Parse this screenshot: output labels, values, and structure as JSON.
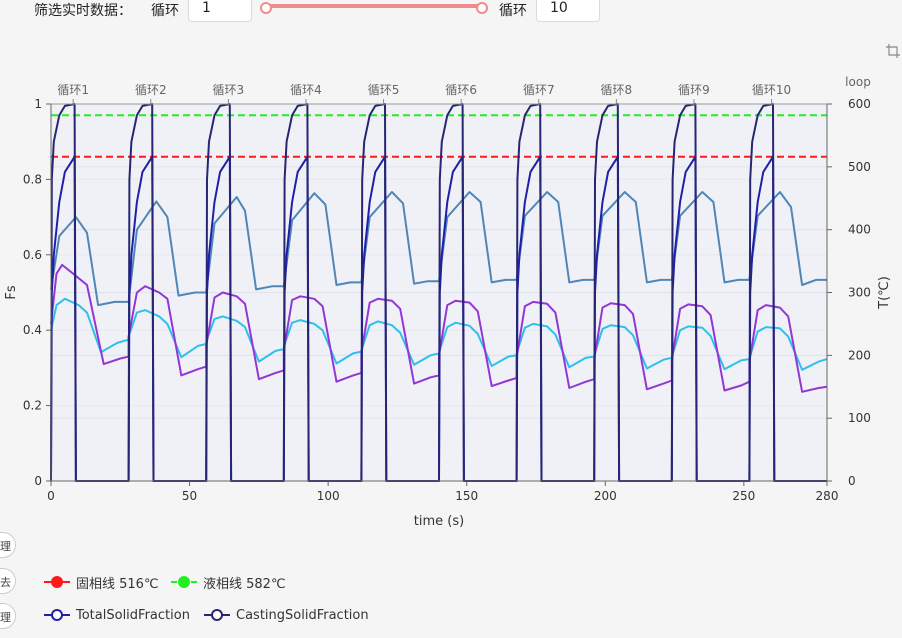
{
  "filter": {
    "label": "筛选实时数据：",
    "cycle_label_from": "循环",
    "from_value": "1",
    "cycle_label_to": "循环",
    "to_value": "10"
  },
  "side_tabs": [
    "理",
    "去",
    "理"
  ],
  "legend": {
    "solidus": {
      "label": "固相线 516℃",
      "color": "#ff1a1a"
    },
    "liquidus": {
      "label": "液相线 582℃",
      "color": "#22ee22"
    },
    "total": {
      "label": "TotalSolidFraction",
      "color": "#1f1fa8"
    },
    "casting": {
      "label": "CastingSolidFraction",
      "color": "#262673"
    }
  },
  "chart_data": {
    "type": "line",
    "xlabel": "time (s)",
    "ylabel_left": "Fs",
    "ylabel_right": "T(℃)",
    "top_axis_label": "loop",
    "xlim": [
      0,
      280
    ],
    "ylim_left": [
      0,
      1
    ],
    "ylim_right": [
      0,
      600
    ],
    "x_ticks": [
      0,
      50,
      100,
      150,
      200,
      250,
      280
    ],
    "y_left_ticks": [
      0,
      0.2,
      0.4,
      0.6,
      0.8,
      1
    ],
    "y_right_ticks": [
      0,
      100,
      200,
      300,
      400,
      500,
      600
    ],
    "top_ticks": [
      {
        "label": "循环1",
        "x": 8
      },
      {
        "label": "循环2",
        "x": 36
      },
      {
        "label": "循环3",
        "x": 64
      },
      {
        "label": "循环4",
        "x": 92
      },
      {
        "label": "循环5",
        "x": 120
      },
      {
        "label": "循环6",
        "x": 148
      },
      {
        "label": "循环7",
        "x": 176
      },
      {
        "label": "循环8",
        "x": 204
      },
      {
        "label": "循环9",
        "x": 232
      },
      {
        "label": "循环10",
        "x": 260
      }
    ],
    "cycle_starts": [
      0,
      28,
      56,
      84,
      112,
      140,
      168,
      196,
      224,
      252
    ],
    "cycle_period": 28,
    "reference_lines": [
      {
        "name": "固相线 516℃",
        "axis": "right",
        "value": 516,
        "color": "#ff1a1a"
      },
      {
        "name": "液相线 582℃",
        "axis": "right",
        "value": 582,
        "color": "#22ee22"
      }
    ],
    "series": [
      {
        "name": "CastingSolidFraction",
        "axis": "left",
        "color": "#262673",
        "cycle_points": [
          [
            0,
            0
          ],
          [
            0.3,
            0.8
          ],
          [
            1,
            0.9
          ],
          [
            3,
            0.97
          ],
          [
            5,
            0.995
          ],
          [
            8.5,
            1
          ],
          [
            9,
            0
          ],
          [
            28,
            0
          ]
        ]
      },
      {
        "name": "TotalSolidFraction",
        "axis": "left",
        "color": "#1f1fa8",
        "cycle_points": [
          [
            0,
            0
          ],
          [
            0.3,
            0.5
          ],
          [
            1,
            0.6
          ],
          [
            3,
            0.74
          ],
          [
            5,
            0.82
          ],
          [
            8.5,
            0.86
          ],
          [
            9,
            0
          ],
          [
            28,
            0
          ]
        ]
      },
      {
        "name": "",
        "axis": "right",
        "color": "#4f86b8",
        "cycles": [
          [
            [
              0,
              305
            ],
            [
              3,
              390
            ],
            [
              9,
              420
            ],
            [
              13,
              395
            ],
            [
              17,
              280
            ],
            [
              23,
              285
            ],
            [
              28,
              285
            ]
          ],
          [
            [
              0,
              285
            ],
            [
              3,
              400
            ],
            [
              10,
              445
            ],
            [
              14,
              420
            ],
            [
              18,
              295
            ],
            [
              24,
              300
            ],
            [
              28,
              300
            ]
          ],
          [
            [
              0,
              300
            ],
            [
              3,
              410
            ],
            [
              11,
              452
            ],
            [
              14,
              430
            ],
            [
              18,
              305
            ],
            [
              24,
              310
            ],
            [
              28,
              310
            ]
          ],
          [
            [
              0,
              310
            ],
            [
              3,
              415
            ],
            [
              11,
              458
            ],
            [
              15,
              440
            ],
            [
              19,
              312
            ],
            [
              24,
              316
            ],
            [
              28,
              316
            ]
          ],
          [
            [
              0,
              316
            ],
            [
              3,
              420
            ],
            [
              11,
              460
            ],
            [
              15,
              442
            ],
            [
              19,
              314
            ],
            [
              24,
              318
            ],
            [
              28,
              318
            ]
          ],
          [
            [
              0,
              318
            ],
            [
              3,
              420
            ],
            [
              11,
              460
            ],
            [
              15,
              444
            ],
            [
              19,
              316
            ],
            [
              24,
              320
            ],
            [
              28,
              320
            ]
          ],
          [
            [
              0,
              320
            ],
            [
              3,
              422
            ],
            [
              11,
              460
            ],
            [
              15,
              444
            ],
            [
              19,
              316
            ],
            [
              24,
              320
            ],
            [
              28,
              320
            ]
          ],
          [
            [
              0,
              320
            ],
            [
              3,
              422
            ],
            [
              11,
              460
            ],
            [
              15,
              444
            ],
            [
              19,
              316
            ],
            [
              24,
              320
            ],
            [
              28,
              320
            ]
          ],
          [
            [
              0,
              320
            ],
            [
              3,
              422
            ],
            [
              11,
              460
            ],
            [
              15,
              444
            ],
            [
              19,
              316
            ],
            [
              24,
              320
            ],
            [
              28,
              320
            ]
          ],
          [
            [
              0,
              320
            ],
            [
              3,
              422
            ],
            [
              11,
              460
            ],
            [
              15,
              436
            ],
            [
              19,
              312
            ],
            [
              24,
              320
            ],
            [
              28,
              320
            ]
          ]
        ]
      },
      {
        "name": "",
        "axis": "right",
        "color": "#2ec0ec",
        "cycles": [
          [
            [
              0,
              240
            ],
            [
              2,
              280
            ],
            [
              5,
              290
            ],
            [
              10,
              280
            ],
            [
              13,
              268
            ],
            [
              18,
              205
            ],
            [
              24,
              220
            ],
            [
              28,
              225
            ]
          ],
          [
            [
              0,
              230
            ],
            [
              3,
              268
            ],
            [
              6,
              272
            ],
            [
              11,
              262
            ],
            [
              14,
              250
            ],
            [
              19,
              197
            ],
            [
              25,
              215
            ],
            [
              28,
              218
            ]
          ],
          [
            [
              0,
              222
            ],
            [
              3,
              258
            ],
            [
              6,
              262
            ],
            [
              11,
              255
            ],
            [
              14,
              245
            ],
            [
              19,
              190
            ],
            [
              25,
              207
            ],
            [
              28,
              210
            ]
          ],
          [
            [
              0,
              214
            ],
            [
              3,
              252
            ],
            [
              6,
              256
            ],
            [
              11,
              250
            ],
            [
              14,
              240
            ],
            [
              19,
              187
            ],
            [
              25,
              203
            ],
            [
              28,
              206
            ]
          ],
          [
            [
              0,
              208
            ],
            [
              3,
              248
            ],
            [
              6,
              254
            ],
            [
              11,
              248
            ],
            [
              14,
              236
            ],
            [
              19,
              185
            ],
            [
              25,
              200
            ],
            [
              28,
              203
            ]
          ],
          [
            [
              0,
              205
            ],
            [
              3,
              245
            ],
            [
              6,
              252
            ],
            [
              11,
              247
            ],
            [
              14,
              234
            ],
            [
              19,
              183
            ],
            [
              25,
              198
            ],
            [
              28,
              200
            ]
          ],
          [
            [
              0,
              203
            ],
            [
              3,
              244
            ],
            [
              6,
              250
            ],
            [
              11,
              246
            ],
            [
              14,
              233
            ],
            [
              19,
              181
            ],
            [
              25,
              196
            ],
            [
              28,
              198
            ]
          ],
          [
            [
              0,
              200
            ],
            [
              3,
              242
            ],
            [
              6,
              248
            ],
            [
              11,
              245
            ],
            [
              14,
              232
            ],
            [
              19,
              179
            ],
            [
              25,
              193
            ],
            [
              28,
              196
            ]
          ],
          [
            [
              0,
              197
            ],
            [
              3,
              240
            ],
            [
              6,
              246
            ],
            [
              11,
              244
            ],
            [
              14,
              231
            ],
            [
              19,
              178
            ],
            [
              25,
              192
            ],
            [
              28,
              194
            ]
          ],
          [
            [
              0,
              195
            ],
            [
              3,
              238
            ],
            [
              6,
              245
            ],
            [
              11,
              243
            ],
            [
              14,
              230
            ],
            [
              19,
              177
            ],
            [
              25,
              190
            ],
            [
              28,
              194
            ]
          ]
        ]
      },
      {
        "name": "",
        "axis": "right",
        "color": "#9436d6",
        "cycles": [
          [
            [
              0,
              250
            ],
            [
              2,
              330
            ],
            [
              4,
              344
            ],
            [
              8,
              330
            ],
            [
              13,
              312
            ],
            [
              19,
              186
            ],
            [
              25,
              195
            ],
            [
              28,
              198
            ]
          ],
          [
            [
              0,
              230
            ],
            [
              3,
              300
            ],
            [
              6,
              310
            ],
            [
              11,
              300
            ],
            [
              14,
              290
            ],
            [
              19,
              168
            ],
            [
              25,
              178
            ],
            [
              28,
              182
            ]
          ],
          [
            [
              0,
              215
            ],
            [
              3,
              292
            ],
            [
              6,
              300
            ],
            [
              11,
              294
            ],
            [
              14,
              282
            ],
            [
              19,
              162
            ],
            [
              25,
              172
            ],
            [
              28,
              176
            ]
          ],
          [
            [
              0,
              208
            ],
            [
              3,
              288
            ],
            [
              6,
              294
            ],
            [
              11,
              290
            ],
            [
              14,
              278
            ],
            [
              19,
              158
            ],
            [
              25,
              168
            ],
            [
              28,
              172
            ]
          ],
          [
            [
              0,
              204
            ],
            [
              3,
              284
            ],
            [
              6,
              290
            ],
            [
              11,
              287
            ],
            [
              14,
              274
            ],
            [
              19,
              155
            ],
            [
              25,
              165
            ],
            [
              28,
              168
            ]
          ],
          [
            [
              0,
              200
            ],
            [
              3,
              280
            ],
            [
              6,
              287
            ],
            [
              11,
              284
            ],
            [
              14,
              270
            ],
            [
              19,
              151
            ],
            [
              25,
              160
            ],
            [
              28,
              164
            ]
          ],
          [
            [
              0,
              197
            ],
            [
              3,
              278
            ],
            [
              6,
              285
            ],
            [
              11,
              282
            ],
            [
              14,
              268
            ],
            [
              19,
              148
            ],
            [
              25,
              158
            ],
            [
              28,
              162
            ]
          ],
          [
            [
              0,
              194
            ],
            [
              3,
              276
            ],
            [
              6,
              283
            ],
            [
              11,
              280
            ],
            [
              14,
              266
            ],
            [
              19,
              146
            ],
            [
              25,
              155
            ],
            [
              28,
              160
            ]
          ],
          [
            [
              0,
              192
            ],
            [
              3,
              274
            ],
            [
              6,
              281
            ],
            [
              11,
              278
            ],
            [
              14,
              264
            ],
            [
              19,
              144
            ],
            [
              25,
              152
            ],
            [
              28,
              158
            ]
          ],
          [
            [
              0,
              190
            ],
            [
              3,
              272
            ],
            [
              6,
              280
            ],
            [
              11,
              276
            ],
            [
              14,
              262
            ],
            [
              19,
              142
            ],
            [
              25,
              148
            ],
            [
              28,
              150
            ]
          ]
        ]
      }
    ]
  }
}
